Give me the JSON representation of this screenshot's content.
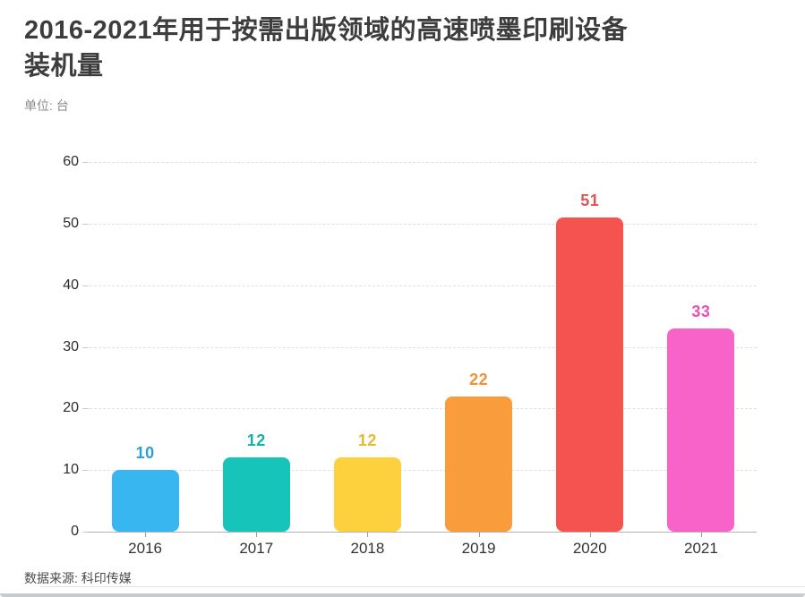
{
  "header": {
    "title_line1": "2016-2021年用于按需出版领域的高速喷墨印刷设备",
    "title_line2": "装机量",
    "subtitle": "单位: 台"
  },
  "footer": {
    "source": "数据来源: 科印传媒"
  },
  "chart_data": {
    "type": "bar",
    "title": "2016-2021年用于按需出版领域的高速喷墨印刷设备装机量",
    "unit_label": "单位: 台",
    "categories": [
      "2016",
      "2017",
      "2018",
      "2019",
      "2020",
      "2021"
    ],
    "values": [
      10,
      12,
      12,
      22,
      51,
      33
    ],
    "bar_colors": [
      "#38b6ef",
      "#17c4b9",
      "#fdd03d",
      "#f99d3c",
      "#f4534f",
      "#f863c9"
    ],
    "label_colors": [
      "#2b9fd6",
      "#12b0a8",
      "#e5ba2f",
      "#ee9338",
      "#e05456",
      "#ea50b8"
    ],
    "xlabel": "",
    "ylabel": "台",
    "ylim": [
      0,
      60
    ],
    "yticks": [
      0,
      10,
      20,
      30,
      40,
      50,
      60
    ],
    "grid": "horizontal-dashed",
    "legend_position": "none",
    "grid_color": "#e0e0e0",
    "axis_color": "#b0b0b0",
    "source_text": "数据来源: 科印传媒"
  }
}
